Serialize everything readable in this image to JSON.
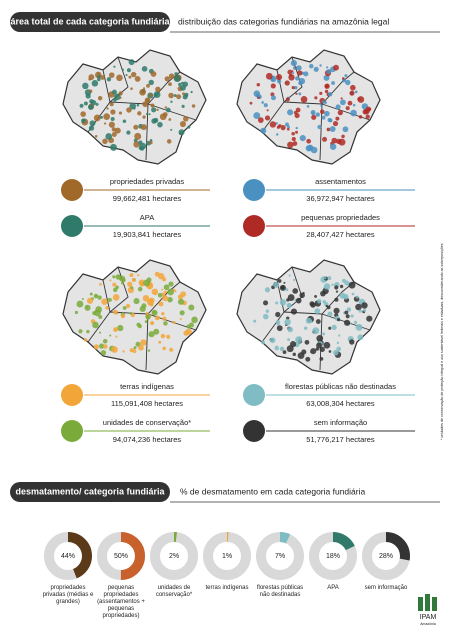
{
  "header": {
    "title": "área total de cada categoria fundiária",
    "subtitle": "distribuição das categorias fundiárias na amazônia legal"
  },
  "legend": [
    {
      "name": "propriedades privadas",
      "value": "99,662,481 hectares",
      "color": "#a0692a"
    },
    {
      "name": "assentamentos",
      "value": "36,972,947 hectares",
      "color": "#4a90c0"
    },
    {
      "name": "APA",
      "value": "19,903,841 hectares",
      "color": "#2f7a6b"
    },
    {
      "name": "pequenas propriedades",
      "value": "28,407,427 hectares",
      "color": "#b02a25"
    },
    {
      "name": "terras indígenas",
      "value": "115,091,408 hectares",
      "color": "#f2a63a"
    },
    {
      "name": "florestas públicas não destinadas",
      "value": "63,008,304 hectares",
      "color": "#7fbcc3"
    },
    {
      "name": "unidades de conservação*",
      "value": "94,074,236 hectares",
      "color": "#7aab3a"
    },
    {
      "name": "sem informação",
      "value": "51,776,217 hectares",
      "color": "#333333"
    }
  ],
  "note": "* unidades de conservação de proteção integral e uso sustentável federais e estaduais, desconsiderando as sobreposições",
  "section": {
    "title": "desmatamento/ categoria fundiária",
    "subtitle": "% de desmatamento em cada categoria fundiária"
  },
  "chart_data": {
    "type": "donut",
    "categories": [
      "propriedades privadas (médias e grandes)",
      "pequenas propriedades (assentamentos + pequenas propriedades)",
      "unidades de conservação*",
      "terras indígenas",
      "florestas públicas não destinadas",
      "APA",
      "sem informação"
    ],
    "values": [
      44,
      50,
      2,
      1,
      7,
      18,
      28
    ],
    "value_labels": [
      "44%",
      "50%",
      "2%",
      "1%",
      "7%",
      "18%",
      "28%"
    ],
    "colors": [
      "#5b3a1a",
      "#c8612b",
      "#7aab3a",
      "#f2a63a",
      "#7fbcc3",
      "#2f7a6b",
      "#333333"
    ]
  },
  "logo": {
    "name": "IPAM",
    "sub": "Amazônia"
  }
}
